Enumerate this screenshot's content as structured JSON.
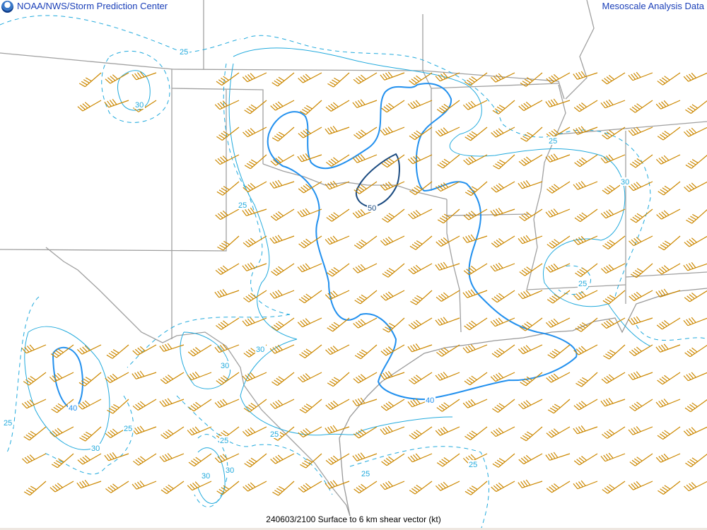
{
  "header": {
    "left_title": "NOAA/NWS/Storm Prediction Center",
    "right_title": "Mesoscale Analysis Data",
    "logo_icon": "noaa-logo-icon"
  },
  "footer": {
    "caption": "240603/2100 Surface to 6 km shear vector (kt)"
  },
  "colors": {
    "barb": "#cc8800",
    "contour_25_30": "#22aadd",
    "contour_40": "#2290ee",
    "contour_50": "#1a4a80",
    "borders": "#999999"
  },
  "contour_labels": [
    {
      "value": "25",
      "level": 25
    },
    {
      "value": "30",
      "level": 30
    },
    {
      "value": "25",
      "level": 25
    },
    {
      "value": "50",
      "level": 50
    },
    {
      "value": "30",
      "level": 30
    },
    {
      "value": "25",
      "level": 25
    },
    {
      "value": "25",
      "level": 25
    },
    {
      "value": "30",
      "level": 30
    },
    {
      "value": "30",
      "level": 30
    },
    {
      "value": "40",
      "level": 40
    },
    {
      "value": "25",
      "level": 25
    },
    {
      "value": "25",
      "level": 25
    },
    {
      "value": "30",
      "level": 30
    },
    {
      "value": "25",
      "level": 25
    },
    {
      "value": "25",
      "level": 25
    },
    {
      "value": "30",
      "level": 30
    },
    {
      "value": "30",
      "level": 30
    },
    {
      "value": "40",
      "level": 40
    },
    {
      "value": "25",
      "level": 25
    },
    {
      "value": "25",
      "level": 25
    }
  ]
}
